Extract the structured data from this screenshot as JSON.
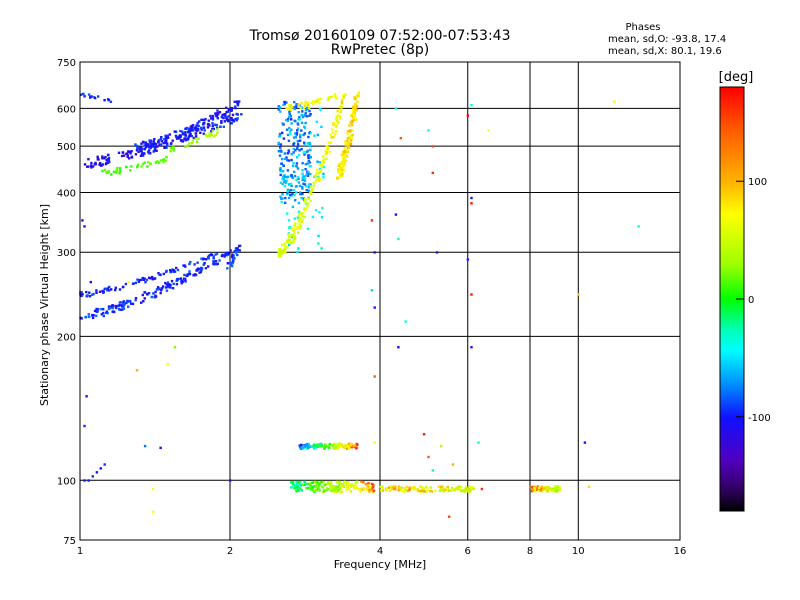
{
  "chart_data": {
    "type": "scatter",
    "title": "Tromsø 20160109 07:52:00-07:53:43",
    "subtitle": "RwPretec (8p)",
    "xlabel": "Frequency [MHz]",
    "ylabel": "Stationary phase Virtual Height [km]",
    "x_scale": "log",
    "y_scale": "log",
    "xlim": [
      1,
      16
    ],
    "ylim": [
      75,
      750
    ],
    "x_ticks": [
      1,
      2,
      4,
      6,
      8,
      10,
      16
    ],
    "x_tick_labels": [
      "1",
      "2",
      "4",
      "6",
      "8",
      "10",
      "16"
    ],
    "y_ticks": [
      75,
      100,
      200,
      300,
      400,
      500,
      600,
      750
    ],
    "y_tick_labels": [
      "75",
      "100",
      "200",
      "300",
      "400",
      "500",
      "600",
      "750"
    ],
    "grid": "on",
    "stats": {
      "header": "Phases",
      "line1": "mean, sd,O: -93.8, 17.4",
      "line2": "mean, sd,X: 80.1, 19.6"
    },
    "colorbar": {
      "label": "[deg]",
      "ticks": [
        100,
        0,
        -100
      ],
      "tick_labels": [
        "100",
        "0",
        "-100"
      ],
      "range": [
        -180,
        180
      ]
    },
    "series": [
      {
        "traces": [
          {
            "f0": 1.0,
            "f1": 2.0,
            "h0": 220,
            "h1": 300,
            "p0": -95,
            "p1": -100,
            "spread": 10,
            "n": 170
          },
          {
            "f0": 1.0,
            "f1": 1.9,
            "h0": 245,
            "h1": 300,
            "p0": -100,
            "p1": -95,
            "spread": 6,
            "n": 90
          },
          {
            "f0": 1.0,
            "f1": 2.1,
            "h0": 460,
            "h1": 580,
            "p0": -110,
            "p1": -100,
            "spread": 22,
            "n": 180
          },
          {
            "f0": 1.3,
            "f1": 2.1,
            "h0": 500,
            "h1": 620,
            "p0": -100,
            "p1": -105,
            "spread": 20,
            "n": 130
          },
          {
            "f0": 1.1,
            "f1": 1.5,
            "h0": 440,
            "h1": 470,
            "p0": 20,
            "p1": 30,
            "spread": 12,
            "n": 40
          },
          {
            "f0": 1.5,
            "f1": 1.9,
            "h0": 490,
            "h1": 540,
            "p0": 40,
            "p1": 60,
            "spread": 15,
            "n": 30
          },
          {
            "f0": 1.0,
            "f1": 1.15,
            "h0": 640,
            "h1": 620,
            "p0": -100,
            "p1": -95,
            "spread": 10,
            "n": 15
          },
          {
            "f0": 1.98,
            "f1": 2.08,
            "h0": 280,
            "h1": 310,
            "p0": -95,
            "p1": -90,
            "spread": 10,
            "n": 30
          }
        ],
        "blobs": [
          {
            "f0": 2.5,
            "f1": 2.9,
            "h0": 380,
            "h1": 620,
            "p0": -70,
            "p1": -80,
            "n": 230
          },
          {
            "f0": 2.6,
            "f1": 3.1,
            "h0": 300,
            "h1": 600,
            "p0": -40,
            "p1": -60,
            "n": 60
          }
        ],
        "points": [
          [
            1.04,
            100,
            -100
          ],
          [
            1.06,
            102,
            -95
          ],
          [
            1.08,
            104,
            -100
          ],
          [
            1.1,
            106,
            -100
          ],
          [
            1.12,
            108,
            -95
          ],
          [
            1.03,
            150,
            -100
          ],
          [
            1.02,
            130,
            -95
          ],
          [
            1.01,
            350,
            -100
          ],
          [
            1.02,
            340,
            -100
          ],
          [
            1.05,
            260,
            -100
          ],
          [
            1.4,
            96,
            100
          ],
          [
            1.4,
            86,
            100
          ],
          [
            1.45,
            117,
            -100
          ],
          [
            1.35,
            118,
            -80
          ],
          [
            1.3,
            170,
            120
          ],
          [
            1.5,
            175,
            100
          ],
          [
            1.55,
            190,
            40
          ],
          [
            1.25,
            260,
            100
          ],
          [
            2.0,
            100,
            -100
          ],
          [
            1.02,
            100,
            -100
          ]
        ]
      },
      {
        "traces": [
          {
            "f0": 2.5,
            "f1": 3.4,
            "h0": 300,
            "h1": 640,
            "p0": 80,
            "p1": 100,
            "spread": 18,
            "n": 170
          },
          {
            "f0": 3.3,
            "f1": 3.6,
            "h0": 440,
            "h1": 640,
            "p0": 100,
            "p1": 110,
            "spread": 30,
            "n": 140
          },
          {
            "f0": 2.6,
            "f1": 3.3,
            "h0": 600,
            "h1": 640,
            "p0": 100,
            "p1": 90,
            "spread": 20,
            "n": 40
          }
        ],
        "bands": [
          {
            "f0": 2.75,
            "f1": 3.6,
            "h": 118,
            "p0": -90,
            "p1": 150,
            "spread": 1.5,
            "n": 120
          },
          {
            "f0": 2.65,
            "f1": 3.9,
            "h": 97,
            "p0": -20,
            "p1": 130,
            "spread": 2.5,
            "n": 180
          },
          {
            "f0": 4.0,
            "f1": 6.2,
            "h": 96,
            "p0": 110,
            "p1": 80,
            "spread": 1.2,
            "n": 120
          },
          {
            "f0": 8.0,
            "f1": 9.2,
            "h": 96,
            "p0": 140,
            "p1": 50,
            "spread": 1.2,
            "n": 70
          }
        ],
        "points": [
          [
            3.85,
            350,
            160
          ],
          [
            3.9,
            300,
            -100
          ],
          [
            3.85,
            250,
            -60
          ],
          [
            3.9,
            230,
            -100
          ],
          [
            3.9,
            165,
            140
          ],
          [
            3.9,
            120,
            100
          ],
          [
            4.3,
            600,
            -50
          ],
          [
            4.4,
            520,
            140
          ],
          [
            4.3,
            360,
            -100
          ],
          [
            4.35,
            320,
            -30
          ],
          [
            4.5,
            215,
            -40
          ],
          [
            4.35,
            190,
            -100
          ],
          [
            5.0,
            540,
            -50
          ],
          [
            5.1,
            500,
            150
          ],
          [
            5.1,
            440,
            160
          ],
          [
            5.2,
            300,
            -100
          ],
          [
            4.9,
            125,
            170
          ],
          [
            5.0,
            112,
            140
          ],
          [
            5.1,
            105,
            -30
          ],
          [
            5.3,
            118,
            60
          ],
          [
            5.6,
            108,
            120
          ],
          [
            5.5,
            84,
            150
          ],
          [
            6.1,
            610,
            -40
          ],
          [
            6.0,
            580,
            180
          ],
          [
            6.1,
            390,
            -100
          ],
          [
            6.1,
            380,
            170
          ],
          [
            6.0,
            290,
            -100
          ],
          [
            6.1,
            245,
            170
          ],
          [
            6.1,
            190,
            -100
          ],
          [
            6.3,
            120,
            -40
          ],
          [
            6.6,
            540,
            100
          ],
          [
            6.4,
            96,
            160
          ],
          [
            10.3,
            120,
            -100
          ],
          [
            10.5,
            97,
            110
          ],
          [
            11.8,
            620,
            100
          ],
          [
            10.0,
            245,
            110
          ],
          [
            13.2,
            340,
            -40
          ]
        ]
      }
    ]
  }
}
